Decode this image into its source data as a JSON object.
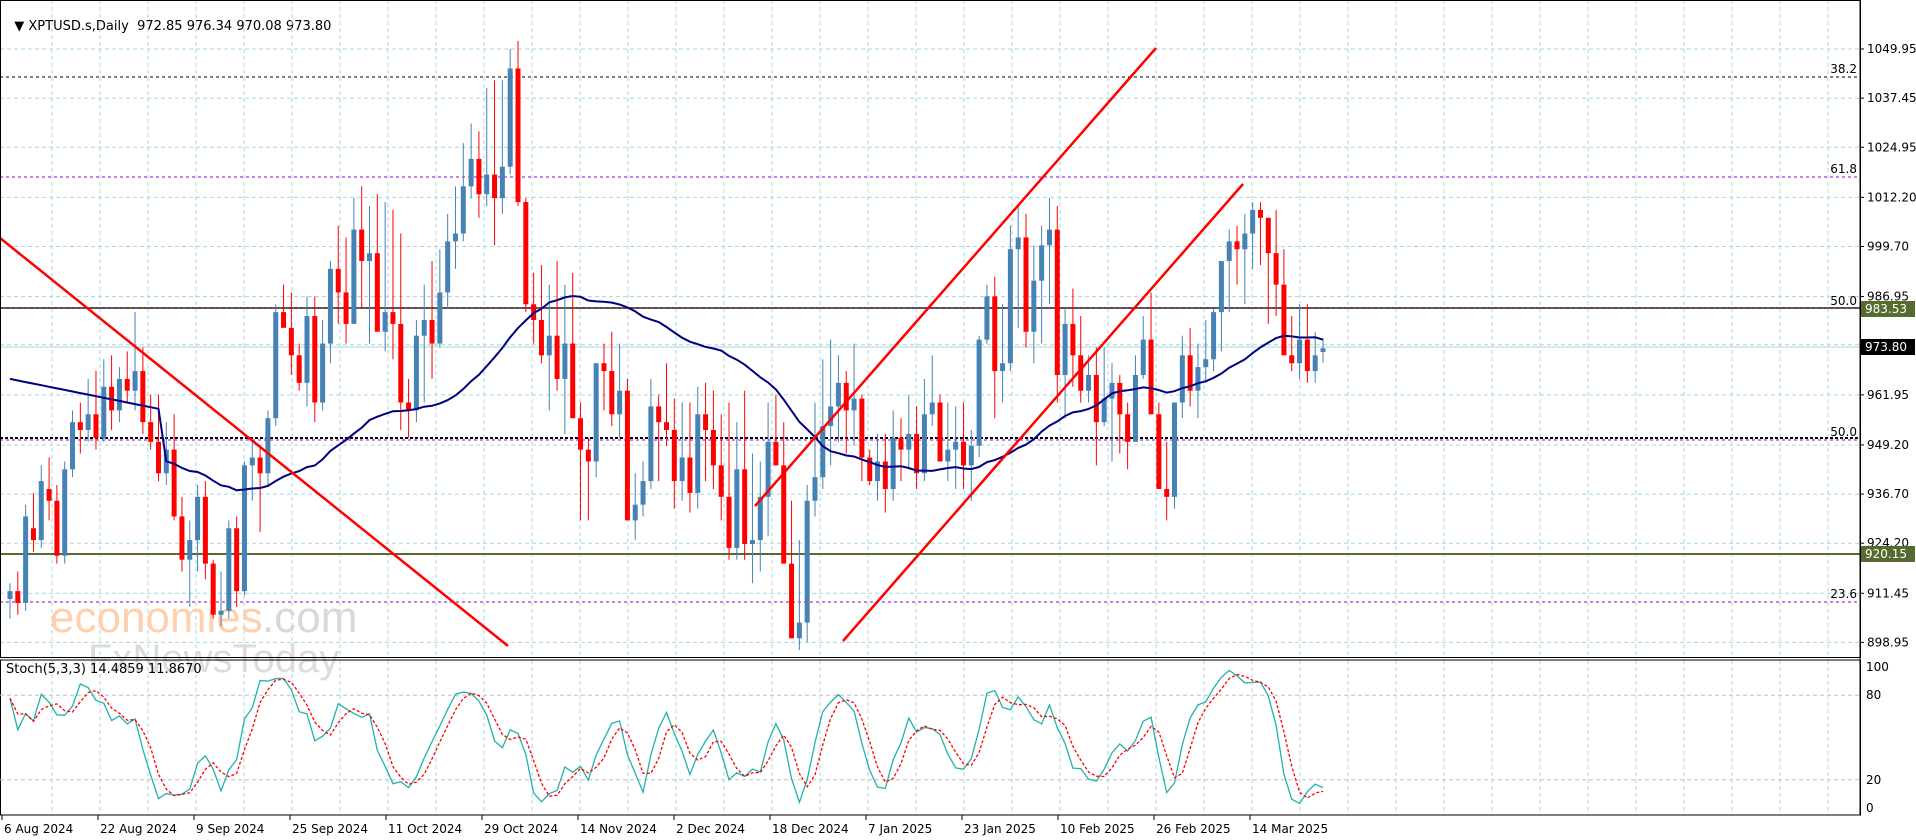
{
  "header": {
    "symbol": "XPTUSD.s,Daily",
    "ohlc_text": "972.85 976.34 970.08 973.80"
  },
  "stoch_panel": {
    "label": "Stoch(5,3,3) 14.4859 11.8670",
    "levels": [
      "100",
      "80",
      "20",
      "0"
    ]
  },
  "watermark": {
    "line1_colored": "economies",
    "line1_gray": ".com",
    "line2": "FxNewsToday"
  },
  "price_axis": {
    "ticks": [
      "1049.95",
      "1037.45",
      "1024.95",
      "1012.20",
      "999.70",
      "986.95",
      "961.95",
      "949.20",
      "936.70",
      "924.20",
      "911.45",
      "898.95"
    ],
    "current_price": "973.80",
    "resistance_tag": "983.53",
    "support_tag": "920.15"
  },
  "fib_labels": {
    "f382": "38.2",
    "f618": "61.8",
    "f500_upper": "50.0",
    "f500_lower": "50.0",
    "f236": "23.6"
  },
  "date_axis": [
    "6 Aug 2024",
    "22 Aug 2024",
    "9 Sep 2024",
    "25 Sep 2024",
    "11 Oct 2024",
    "29 Oct 2024",
    "14 Nov 2024",
    "2 Dec 2024",
    "18 Dec 2024",
    "7 Jan 2025",
    "23 Jan 2025",
    "10 Feb 2025",
    "26 Feb 2025",
    "14 Mar 2025"
  ],
  "colors": {
    "bull": "#4682b4",
    "bear": "#ff0000",
    "ma": "#000080",
    "grid": "#a8d8dc",
    "trendline": "#ff0000",
    "fib_purple": "#9400d3",
    "level_olive": "#556b2f",
    "stoch_main": "#20b2aa",
    "stoch_signal": "#ff0000"
  },
  "chart_data": {
    "type": "candlestick",
    "title": "XPTUSD.s, Daily",
    "ylim": [
      893,
      1062
    ],
    "y_ticks": [
      898.95,
      911.45,
      924.2,
      936.7,
      949.2,
      961.95,
      974.7,
      986.95,
      999.7,
      1012.2,
      1024.95,
      1037.45,
      1049.95
    ],
    "last_ohlc": {
      "open": 972.85,
      "high": 976.34,
      "low": 970.08,
      "close": 973.8
    },
    "horizontal_levels": [
      {
        "name": "fib 38.2",
        "price": 1043.0,
        "style": "dashed",
        "color": "#000000"
      },
      {
        "name": "fib 61.8",
        "price": 1017.5,
        "style": "dashed",
        "color": "#9400d3"
      },
      {
        "name": "fib 50.0 / resistance",
        "price": 983.53,
        "style": "solid",
        "color": "#556b2f"
      },
      {
        "name": "fib 50.0 lower",
        "price": 950.2,
        "style": "dotted",
        "color": "#000000"
      },
      {
        "name": "support",
        "price": 920.15,
        "style": "solid",
        "color": "#556b2f"
      },
      {
        "name": "fib 23.6",
        "price": 907.9,
        "style": "dashed",
        "color": "#9400d3"
      }
    ],
    "candles": [
      [
        910,
        914,
        905,
        912
      ],
      [
        912,
        917,
        906,
        909
      ],
      [
        909,
        934,
        907,
        931
      ],
      [
        928,
        937,
        922,
        925
      ],
      [
        925,
        944,
        923,
        940
      ],
      [
        938,
        946,
        930,
        935
      ],
      [
        935,
        939,
        919,
        921
      ],
      [
        921,
        945,
        919,
        943
      ],
      [
        943,
        958,
        941,
        955
      ],
      [
        955,
        960,
        947,
        953
      ],
      [
        953,
        966,
        950,
        957
      ],
      [
        957,
        968,
        948,
        951
      ],
      [
        951,
        971,
        950,
        964
      ],
      [
        964,
        972,
        953,
        958
      ],
      [
        958,
        969,
        955,
        966
      ],
      [
        966,
        973,
        960,
        963
      ],
      [
        963,
        983,
        958,
        968
      ],
      [
        968,
        974,
        952,
        955
      ],
      [
        955,
        962,
        948,
        950
      ],
      [
        950,
        962,
        940,
        942
      ],
      [
        942,
        955,
        939,
        948
      ],
      [
        948,
        957,
        930,
        931
      ],
      [
        931,
        936,
        917,
        920
      ],
      [
        920,
        930,
        908,
        925
      ],
      [
        925,
        939,
        917,
        936
      ],
      [
        936,
        940,
        915,
        919
      ],
      [
        919,
        920,
        905,
        906
      ],
      [
        906,
        917,
        903,
        907
      ],
      [
        907,
        930,
        905,
        928
      ],
      [
        928,
        931,
        908,
        912
      ],
      [
        912,
        945,
        911,
        944
      ],
      [
        944,
        950,
        935,
        946
      ],
      [
        946,
        949,
        927,
        942
      ],
      [
        942,
        958,
        939,
        956
      ],
      [
        956,
        985,
        954,
        983
      ],
      [
        983,
        990,
        980,
        979
      ],
      [
        979,
        988,
        967,
        972
      ],
      [
        972,
        975,
        963,
        965
      ],
      [
        965,
        987,
        959,
        982
      ],
      [
        982,
        987,
        955,
        960
      ],
      [
        960,
        981,
        958,
        975
      ],
      [
        975,
        996,
        970,
        994
      ],
      [
        994,
        1005,
        980,
        988
      ],
      [
        988,
        1002,
        975,
        980
      ],
      [
        980,
        1012,
        982,
        1004
      ],
      [
        1004,
        1015,
        984,
        996
      ],
      [
        996,
        1010,
        975,
        998
      ],
      [
        998,
        1013,
        980,
        978
      ],
      [
        978,
        1011,
        973,
        983
      ],
      [
        983,
        1009,
        971,
        980
      ],
      [
        980,
        1003,
        953,
        960
      ],
      [
        960,
        966,
        951,
        958
      ],
      [
        958,
        981,
        955,
        977
      ],
      [
        977,
        990,
        960,
        981
      ],
      [
        981,
        996,
        966,
        975
      ],
      [
        975,
        999,
        974,
        988
      ],
      [
        988,
        1008,
        984,
        1001
      ],
      [
        1001,
        1015,
        994,
        1003
      ],
      [
        1003,
        1026,
        1001,
        1015
      ],
      [
        1015,
        1031,
        1012,
        1022
      ],
      [
        1022,
        1029,
        1007,
        1013
      ],
      [
        1013,
        1040,
        1010,
        1018
      ],
      [
        1018,
        1042,
        1000,
        1012
      ],
      [
        1012,
        1042,
        1008,
        1020
      ],
      [
        1020,
        1050,
        1018,
        1045
      ],
      [
        1045,
        1052,
        1010,
        1011
      ],
      [
        1011,
        1012,
        983,
        985
      ],
      [
        985,
        993,
        975,
        981
      ],
      [
        981,
        995,
        970,
        972
      ],
      [
        972,
        990,
        958,
        977
      ],
      [
        977,
        996,
        963,
        966
      ],
      [
        966,
        990,
        952,
        975
      ],
      [
        975,
        993,
        957,
        956
      ],
      [
        956,
        960,
        930,
        948
      ],
      [
        948,
        951,
        930,
        945
      ],
      [
        945,
        963,
        941,
        970
      ],
      [
        970,
        975,
        958,
        968
      ],
      [
        968,
        978,
        954,
        957
      ],
      [
        957,
        975,
        951,
        963
      ],
      [
        963,
        966,
        935,
        930
      ],
      [
        930,
        942,
        925,
        934
      ],
      [
        934,
        945,
        931,
        940
      ],
      [
        940,
        966,
        938,
        959
      ],
      [
        959,
        962,
        940,
        955
      ],
      [
        955,
        970,
        949,
        953
      ],
      [
        953,
        961,
        933,
        940
      ],
      [
        940,
        960,
        935,
        946
      ],
      [
        946,
        960,
        932,
        937
      ],
      [
        937,
        964,
        933,
        957
      ],
      [
        957,
        965,
        940,
        953
      ],
      [
        953,
        963,
        938,
        944
      ],
      [
        944,
        957,
        930,
        936
      ],
      [
        936,
        960,
        920,
        923
      ],
      [
        923,
        955,
        920,
        943
      ],
      [
        943,
        963,
        920,
        924
      ],
      [
        924,
        947,
        914,
        925
      ],
      [
        925,
        945,
        917,
        936
      ],
      [
        936,
        960,
        926,
        950
      ],
      [
        950,
        962,
        944,
        944
      ],
      [
        944,
        955,
        920,
        919
      ],
      [
        919,
        935,
        905,
        900
      ],
      [
        900,
        925,
        897,
        904
      ],
      [
        904,
        939,
        899,
        935
      ],
      [
        935,
        960,
        931,
        941
      ],
      [
        941,
        971,
        938,
        954
      ],
      [
        954,
        976,
        944,
        959
      ],
      [
        959,
        972,
        950,
        965
      ],
      [
        965,
        968,
        947,
        958
      ],
      [
        958,
        975,
        949,
        961
      ],
      [
        961,
        962,
        940,
        946
      ],
      [
        946,
        948,
        939,
        940
      ],
      [
        940,
        952,
        935,
        945
      ],
      [
        945,
        952,
        932,
        938
      ],
      [
        938,
        958,
        935,
        951
      ],
      [
        951,
        956,
        940,
        948
      ],
      [
        948,
        962,
        943,
        952
      ],
      [
        952,
        959,
        938,
        942
      ],
      [
        942,
        966,
        940,
        957
      ],
      [
        957,
        972,
        954,
        960
      ],
      [
        960,
        962,
        949,
        945
      ],
      [
        945,
        960,
        940,
        948
      ],
      [
        948,
        959,
        938,
        950
      ],
      [
        950,
        960,
        938,
        944
      ],
      [
        944,
        953,
        935,
        949
      ],
      [
        949,
        977,
        946,
        976
      ],
      [
        976,
        990,
        975,
        987
      ],
      [
        987,
        992,
        956,
        968
      ],
      [
        968,
        985,
        960,
        970
      ],
      [
        970,
        1005,
        968,
        999
      ],
      [
        999,
        1010,
        979,
        1002
      ],
      [
        1002,
        1008,
        974,
        978
      ],
      [
        978,
        1000,
        970,
        991
      ],
      [
        991,
        1005,
        975,
        1000
      ],
      [
        1000,
        1012,
        985,
        1004
      ],
      [
        1004,
        1010,
        960,
        967
      ],
      [
        967,
        984,
        956,
        980
      ],
      [
        980,
        989,
        964,
        972
      ],
      [
        972,
        982,
        960,
        963
      ],
      [
        963,
        972,
        960,
        967
      ],
      [
        967,
        974,
        944,
        955
      ],
      [
        955,
        974,
        954,
        961
      ],
      [
        961,
        970,
        945,
        965
      ],
      [
        965,
        967,
        947,
        957
      ],
      [
        957,
        960,
        943,
        950
      ],
      [
        950,
        972,
        950,
        967
      ],
      [
        967,
        982,
        966,
        976
      ],
      [
        976,
        988,
        962,
        957
      ],
      [
        957,
        960,
        942,
        938
      ],
      [
        938,
        950,
        930,
        936
      ],
      [
        936,
        957,
        933,
        960
      ],
      [
        960,
        977,
        956,
        972
      ],
      [
        972,
        979,
        959,
        963
      ],
      [
        963,
        975,
        956,
        969
      ],
      [
        969,
        981,
        965,
        971
      ],
      [
        971,
        984,
        968,
        983
      ],
      [
        983,
        995,
        973,
        996
      ],
      [
        996,
        1004,
        983,
        1001
      ],
      [
        1001,
        1005,
        990,
        999
      ],
      [
        999,
        1008,
        985,
        1003
      ],
      [
        1003,
        1011,
        994,
        1009
      ],
      [
        1009,
        1011,
        995,
        1007
      ],
      [
        1007,
        1006,
        980,
        998
      ],
      [
        998,
        1009,
        982,
        990
      ],
      [
        990,
        999,
        978,
        972
      ],
      [
        972,
        982,
        968,
        970
      ],
      [
        970,
        985,
        966,
        976
      ],
      [
        976,
        985,
        965,
        968
      ],
      [
        968,
        978,
        965,
        972
      ],
      [
        972.85,
        976.34,
        970.08,
        973.8
      ]
    ],
    "moving_average": {
      "label": "MA",
      "approx_values_start_end": [
        965,
        964
      ]
    },
    "stochastic": {
      "k": 14.4859,
      "d": 11.867,
      "period": "5,3,3",
      "levels": [
        80,
        20
      ]
    }
  }
}
